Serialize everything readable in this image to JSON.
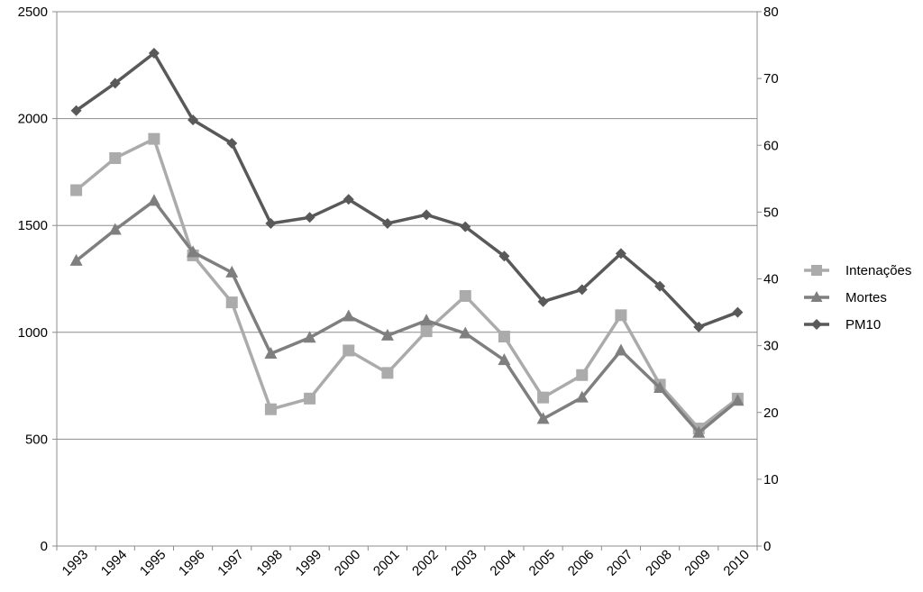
{
  "chart_data": {
    "type": "line",
    "title": "",
    "xlabel": "",
    "ylabel_left": "",
    "ylabel_right": "",
    "categories": [
      "1993",
      "1994",
      "1995",
      "1996",
      "1997",
      "1998",
      "1999",
      "2000",
      "2001",
      "2002",
      "2003",
      "2004",
      "2005",
      "2006",
      "2007",
      "2008",
      "2009",
      "2010"
    ],
    "y_left": {
      "min": 0,
      "max": 2500,
      "ticks": [
        "0",
        "500",
        "1000",
        "1500",
        "2000",
        "2500"
      ]
    },
    "y_right": {
      "min": 0,
      "max": 80,
      "ticks": [
        "0",
        "10",
        "20",
        "30",
        "40",
        "50",
        "60",
        "70",
        "80"
      ]
    },
    "grid": "horizontal",
    "legend_position": "right",
    "series": [
      {
        "name": "Intenações",
        "axis": "left",
        "marker": "square",
        "color": "#ababab",
        "values": [
          1665,
          1815,
          1905,
          1360,
          1140,
          640,
          690,
          915,
          810,
          1005,
          1170,
          980,
          695,
          800,
          1080,
          755,
          550,
          690
        ]
      },
      {
        "name": "Mortes",
        "axis": "left",
        "marker": "triangle",
        "color": "#7f7f7f",
        "values": [
          1335,
          1480,
          1615,
          1375,
          1280,
          900,
          975,
          1075,
          985,
          1055,
          995,
          870,
          595,
          695,
          915,
          740,
          530,
          680
        ]
      },
      {
        "name": "PM10",
        "axis": "right",
        "marker": "diamond",
        "color": "#595959",
        "values": [
          65.2,
          69.3,
          73.8,
          63.8,
          60.3,
          48.3,
          49.2,
          51.9,
          48.3,
          49.6,
          47.8,
          43.4,
          36.6,
          38.4,
          43.8,
          38.9,
          32.8,
          35.0
        ]
      }
    ]
  }
}
